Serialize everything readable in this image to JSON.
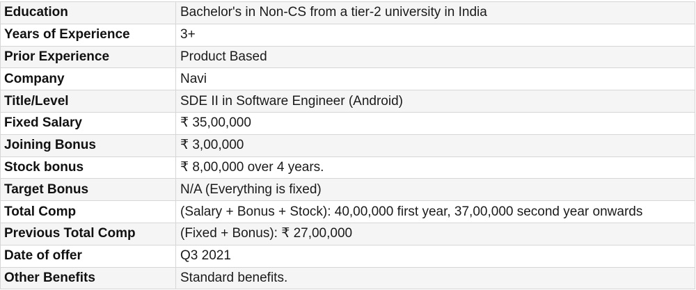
{
  "rows": [
    {
      "label": "Education",
      "value": "Bachelor's in Non-CS from a tier-2 university in India"
    },
    {
      "label": "Years of Experience",
      "value": "3+"
    },
    {
      "label": "Prior Experience",
      "value": "Product Based"
    },
    {
      "label": "Company",
      "value": "Navi"
    },
    {
      "label": "Title/Level",
      "value": "SDE II in Software Engineer (Android)"
    },
    {
      "label": "Fixed Salary",
      "value": "₹ 35,00,000"
    },
    {
      "label": "Joining Bonus",
      "value": "₹ 3,00,000"
    },
    {
      "label": "Stock bonus",
      "value": "₹ 8,00,000 over 4 years."
    },
    {
      "label": "Target Bonus",
      "value": "N/A (Everything is fixed)"
    },
    {
      "label": "Total Comp",
      "value": "(Salary + Bonus + Stock): 40,00,000 first year, 37,00,000 second year onwards"
    },
    {
      "label": "Previous Total Comp",
      "value": "(Fixed + Bonus): ₹ 27,00,000"
    },
    {
      "label": "Date of offer",
      "value": "Q3 2021"
    },
    {
      "label": "Other Benefits",
      "value": "Standard benefits."
    }
  ]
}
